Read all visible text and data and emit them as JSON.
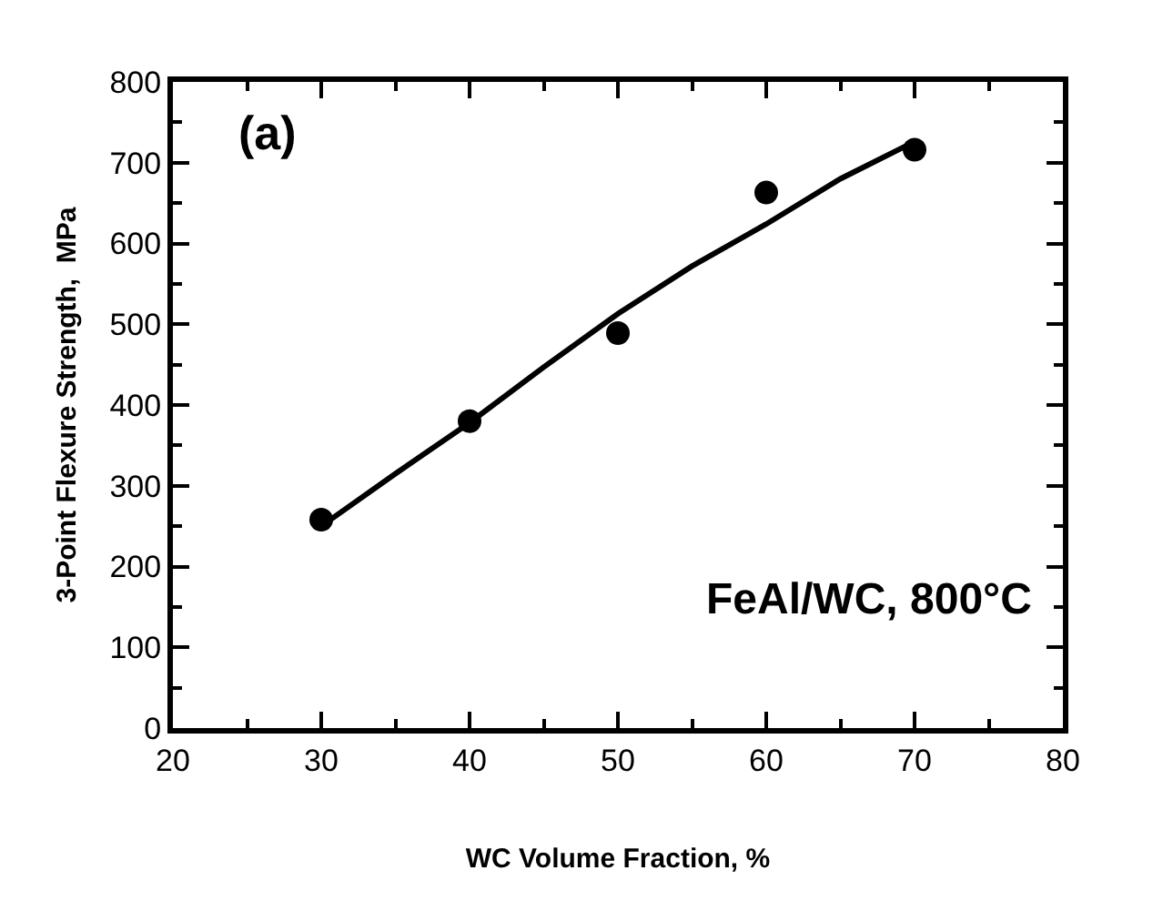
{
  "chart_data": {
    "type": "scatter",
    "xlabel": "WC Volume Fraction, %",
    "ylabel": "3-Point Flexure Strength,  MPa",
    "annotations": [
      "(a)",
      "FeAl/WC, 800°C"
    ],
    "xlim": [
      20,
      80
    ],
    "xticks": [
      20,
      30,
      40,
      50,
      60,
      70,
      80
    ],
    "ylim": [
      0,
      800
    ],
    "yticks": [
      0,
      100,
      200,
      300,
      400,
      500,
      600,
      700,
      800
    ],
    "marker": "circle",
    "series": [
      {
        "color": "#000000",
        "x": [
          30,
          40,
          50,
          60,
          70
        ],
        "values": [
          258,
          380,
          489,
          663,
          716
        ]
      },
      {
        "type": "line",
        "color": "#000000",
        "line_style": "solid",
        "marker": "none",
        "x": [
          30,
          35,
          40,
          45,
          50,
          55,
          60,
          65,
          70
        ],
        "values": [
          250,
          315,
          378,
          447,
          513,
          572,
          624,
          680,
          726
        ]
      }
    ]
  }
}
